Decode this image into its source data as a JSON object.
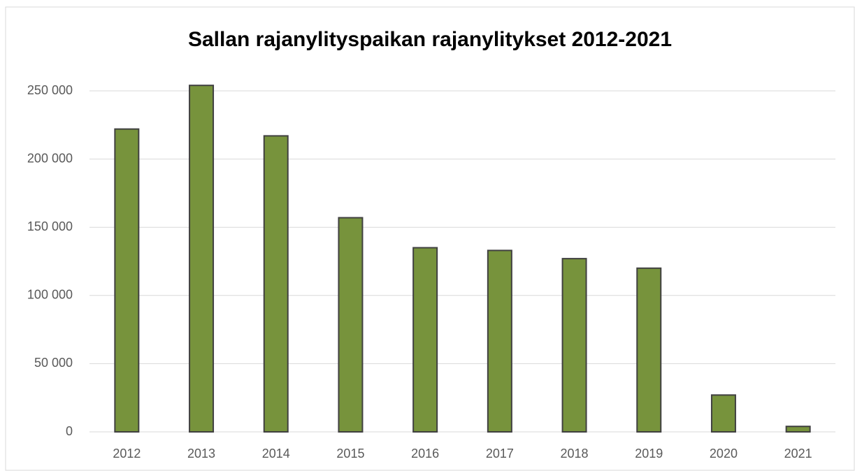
{
  "chart_data": {
    "type": "bar",
    "title": "Sallan rajanylityspaikan rajanylitykset 2012-2021",
    "categories": [
      "2012",
      "2013",
      "2014",
      "2015",
      "2016",
      "2017",
      "2018",
      "2019",
      "2020",
      "2021"
    ],
    "values": [
      222000,
      254000,
      217000,
      157000,
      135000,
      133000,
      127000,
      120000,
      27000,
      4000
    ],
    "color": "#77933c",
    "ylim": [
      0,
      250000
    ],
    "yticks": [
      0,
      {
        "value": 50000,
        "label": "50 000"
      },
      {
        "value": 100000,
        "label": "100 000"
      },
      {
        "value": 150000,
        "label": "150 000"
      },
      {
        "value": 200000,
        "label": "200 000"
      },
      {
        "value": 250000,
        "label": "250 000"
      }
    ],
    "grid": true
  }
}
